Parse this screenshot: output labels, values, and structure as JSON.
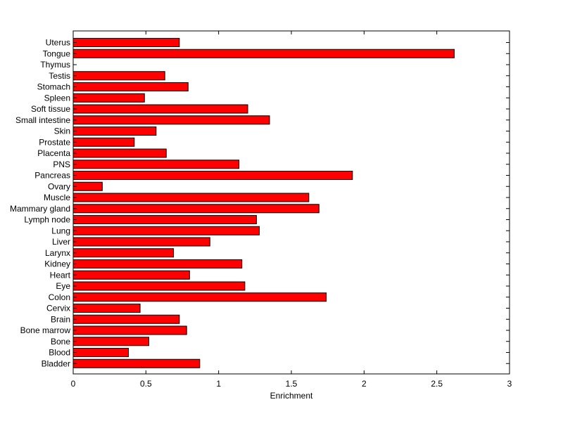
{
  "chart_data": {
    "type": "bar",
    "orientation": "horizontal",
    "title": "",
    "xlabel": "Enrichment",
    "ylabel": "",
    "xlim": [
      0,
      3
    ],
    "x_ticks": [
      0,
      0.5,
      1,
      1.5,
      2,
      2.5,
      3
    ],
    "x_tick_labels": [
      "0",
      "0.5",
      "1",
      "1.5",
      "2",
      "2.5",
      "3"
    ],
    "grid": false,
    "bar_color": "#ff0000",
    "categories": [
      "Uterus",
      "Tongue",
      "Thymus",
      "Testis",
      "Stomach",
      "Spleen",
      "Soft tissue",
      "Small intestine",
      "Skin",
      "Prostate",
      "Placenta",
      "PNS",
      "Pancreas",
      "Ovary",
      "Muscle",
      "Mammary gland",
      "Lymph node",
      "Lung",
      "Liver",
      "Larynx",
      "Kidney",
      "Heart",
      "Eye",
      "Colon",
      "Cervix",
      "Brain",
      "Bone marrow",
      "Bone",
      "Blood",
      "Bladder"
    ],
    "values": [
      0.73,
      2.62,
      0.0,
      0.63,
      0.79,
      0.49,
      1.2,
      1.35,
      0.57,
      0.42,
      0.64,
      1.14,
      1.92,
      0.2,
      1.62,
      1.69,
      1.26,
      1.28,
      0.94,
      0.69,
      1.16,
      0.8,
      1.18,
      1.74,
      0.46,
      0.73,
      0.78,
      0.52,
      0.38,
      0.87
    ]
  }
}
